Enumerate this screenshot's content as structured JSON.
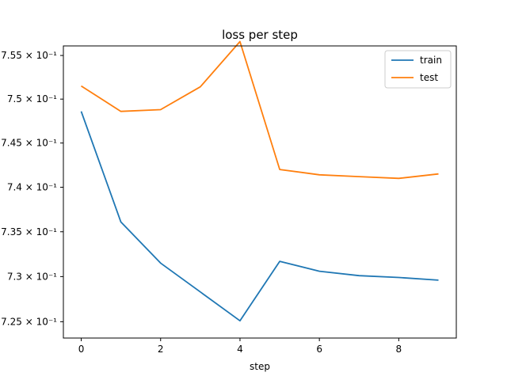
{
  "chart_data": {
    "type": "line",
    "title": "loss per step",
    "xlabel": "step",
    "ylabel": "",
    "yscale": "log",
    "grid": false,
    "legend_position": "upper right",
    "x": [
      0,
      1,
      2,
      3,
      4,
      5,
      6,
      7,
      8,
      9
    ],
    "xlim": [
      -0.45,
      9.45
    ],
    "ylim": [
      0.7232,
      0.7561
    ],
    "x_ticks": [
      0,
      2,
      4,
      6,
      8
    ],
    "x_tick_labels": [
      "0",
      "2",
      "4",
      "6",
      "8"
    ],
    "y_ticks": [
      0.725,
      0.73,
      0.735,
      0.74,
      0.745,
      0.75,
      0.755
    ],
    "y_tick_labels": [
      "7.25 × 10⁻¹",
      "7.3 × 10⁻¹",
      "7.35 × 10⁻¹",
      "7.4 × 10⁻¹",
      "7.45 × 10⁻¹",
      "7.5 × 10⁻¹",
      "7.55 × 10⁻¹"
    ],
    "series": [
      {
        "name": "train",
        "color": "#1f77b4",
        "values": [
          0.7486,
          0.7361,
          0.7315,
          0.7283,
          0.7251,
          0.7317,
          0.7306,
          0.7301,
          0.7299,
          0.7296
        ]
      },
      {
        "name": "test",
        "color": "#ff7f0e",
        "values": [
          0.7515,
          0.7486,
          0.7488,
          0.7514,
          0.7566,
          0.742,
          0.7414,
          0.7412,
          0.741,
          0.7415
        ]
      }
    ]
  }
}
